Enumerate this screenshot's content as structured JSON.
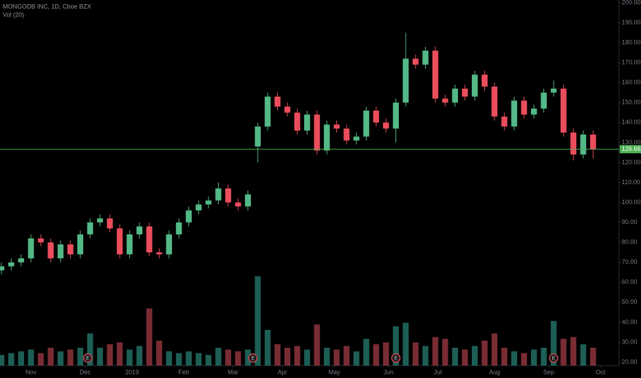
{
  "chart_data": {
    "type": "candlestick",
    "title": "MONGODB INC, 1D, Cboe BZX",
    "subtitle": "Vol (20)",
    "x": [
      0,
      4,
      8,
      12,
      16,
      20,
      24,
      28,
      32,
      36,
      40,
      44,
      48,
      52,
      56,
      60,
      64,
      68,
      72,
      76,
      80,
      84,
      88,
      92,
      96,
      100,
      104,
      108,
      112,
      116,
      120,
      124,
      128,
      132,
      136,
      140,
      144,
      148,
      152,
      156,
      160,
      164,
      168,
      172,
      176,
      180,
      184,
      188,
      192,
      196,
      200,
      204,
      208,
      212,
      216,
      220,
      224,
      228,
      232,
      236,
      240
    ],
    "ohlc": [
      [
        66,
        70,
        64,
        68
      ],
      [
        68,
        72,
        66,
        70
      ],
      [
        70,
        74,
        68,
        72
      ],
      [
        72,
        84,
        70,
        82
      ],
      [
        82,
        84,
        78,
        80
      ],
      [
        80,
        82,
        70,
        72
      ],
      [
        72,
        81,
        70,
        79
      ],
      [
        79,
        81,
        72,
        74
      ],
      [
        74,
        86,
        72,
        84
      ],
      [
        84,
        92,
        82,
        90
      ],
      [
        90,
        94,
        88,
        92
      ],
      [
        92,
        94,
        85,
        87
      ],
      [
        87,
        89,
        72,
        74
      ],
      [
        74,
        86,
        72,
        84
      ],
      [
        84,
        90,
        82,
        88
      ],
      [
        88,
        90,
        73,
        75
      ],
      [
        75,
        77,
        72,
        74
      ],
      [
        74,
        86,
        72,
        84
      ],
      [
        84,
        92,
        82,
        90
      ],
      [
        90,
        98,
        88,
        96
      ],
      [
        96,
        101,
        94,
        99
      ],
      [
        99,
        103,
        97,
        101
      ],
      [
        101,
        110,
        99,
        107
      ],
      [
        107,
        109,
        98,
        100
      ],
      [
        100,
        102,
        96,
        98
      ],
      [
        98,
        106,
        96,
        104
      ],
      [
        128,
        140,
        120,
        138
      ],
      [
        138,
        155,
        136,
        153
      ],
      [
        153,
        155,
        146,
        148
      ],
      [
        148,
        150,
        143,
        145
      ],
      [
        145,
        147,
        134,
        136
      ],
      [
        136,
        146,
        134,
        144
      ],
      [
        144,
        146,
        124,
        126
      ],
      [
        126,
        141,
        124,
        139
      ],
      [
        139,
        141,
        135,
        137
      ],
      [
        137,
        139,
        129,
        131
      ],
      [
        131,
        135,
        129,
        133
      ],
      [
        133,
        148,
        131,
        146
      ],
      [
        146,
        148,
        138,
        140
      ],
      [
        140,
        142,
        135,
        137
      ],
      [
        137,
        152,
        130,
        150
      ],
      [
        150,
        185,
        148,
        172
      ],
      [
        172,
        174,
        167,
        169
      ],
      [
        169,
        178,
        167,
        176
      ],
      [
        176,
        178,
        150,
        152
      ],
      [
        152,
        154,
        148,
        150
      ],
      [
        150,
        159,
        148,
        157
      ],
      [
        157,
        159,
        151,
        153
      ],
      [
        153,
        166,
        151,
        164
      ],
      [
        164,
        166,
        156,
        158
      ],
      [
        158,
        160,
        141,
        143
      ],
      [
        143,
        145,
        136,
        138
      ],
      [
        138,
        153,
        136,
        151
      ],
      [
        151,
        153,
        142,
        144
      ],
      [
        144,
        149,
        142,
        147
      ],
      [
        147,
        157,
        145,
        155
      ],
      [
        155,
        161,
        153,
        157
      ],
      [
        157,
        159,
        133,
        135
      ],
      [
        135,
        137,
        121,
        124
      ],
      [
        124,
        136,
        122,
        134
      ],
      [
        134,
        136,
        122,
        126.66
      ]
    ],
    "volume": [
      0.6,
      0.7,
      0.8,
      0.9,
      0.7,
      1.0,
      0.8,
      0.9,
      1.0,
      1.8,
      1.0,
      1.2,
      1.3,
      0.9,
      1.1,
      3.2,
      1.4,
      0.8,
      0.7,
      0.8,
      0.7,
      0.6,
      1.0,
      0.9,
      0.8,
      0.9,
      5.0,
      2.0,
      1.2,
      1.0,
      1.1,
      0.9,
      2.3,
      1.0,
      0.9,
      1.1,
      0.8,
      1.5,
      1.2,
      1.3,
      2.2,
      2.4,
      1.3,
      1.1,
      1.6,
      1.5,
      1.0,
      0.9,
      1.1,
      1.4,
      1.8,
      1.0,
      0.8,
      0.7,
      0.9,
      1.0,
      2.5,
      1.5,
      1.6,
      1.2,
      1.0
    ],
    "up_color": "#53b987",
    "down_color": "#eb4d5c",
    "volume_up_color": "#1d5e55",
    "volume_down_color": "#7a2c33",
    "xlim": [
      0,
      250.5
    ],
    "xticks": [
      {
        "value": 12,
        "label": "Nov"
      },
      {
        "value": 34,
        "label": "Dec"
      },
      {
        "value": 53,
        "label": "2019"
      },
      {
        "value": 74,
        "label": "Feb"
      },
      {
        "value": 94,
        "label": "Mar"
      },
      {
        "value": 114,
        "label": "Apr"
      },
      {
        "value": 135,
        "label": "May"
      },
      {
        "value": 157,
        "label": "Jun"
      },
      {
        "value": 177,
        "label": "Jul"
      },
      {
        "value": 200,
        "label": "Aug"
      },
      {
        "value": 222,
        "label": "Sep"
      },
      {
        "value": 243,
        "label": "Oct"
      }
    ],
    "ylim": [
      20,
      200
    ],
    "yticks": [
      {
        "value": 20,
        "label": "20.00"
      },
      {
        "value": 30,
        "label": "30.00"
      },
      {
        "value": 40,
        "label": "40.00"
      },
      {
        "value": 50,
        "label": "50.00"
      },
      {
        "value": 60,
        "label": "60.00"
      },
      {
        "value": 70,
        "label": "70.00"
      },
      {
        "value": 80,
        "label": "80.00"
      },
      {
        "value": 90,
        "label": "90.00"
      },
      {
        "value": 100,
        "label": "100.00"
      },
      {
        "value": 110,
        "label": "110.00"
      },
      {
        "value": 120,
        "label": "120.00"
      },
      {
        "value": 130,
        "label": "130.00"
      },
      {
        "value": 140,
        "label": "140.00"
      },
      {
        "value": 150,
        "label": "150.00"
      },
      {
        "value": 160,
        "label": "160.00"
      },
      {
        "value": 170,
        "label": "170.00"
      },
      {
        "value": 180,
        "label": "180.00"
      },
      {
        "value": 190,
        "label": "190.00"
      },
      {
        "value": 200,
        "label": "200.00"
      }
    ],
    "y2lim": [
      0,
      5
    ],
    "last_price": 126.66,
    "last_price_color": "#4caf50",
    "earnings": [
      {
        "x": 35,
        "label": "E"
      },
      {
        "x": 102,
        "label": "E"
      },
      {
        "x": 160,
        "label": "E"
      },
      {
        "x": 224,
        "label": "E"
      }
    ],
    "grid": false
  }
}
